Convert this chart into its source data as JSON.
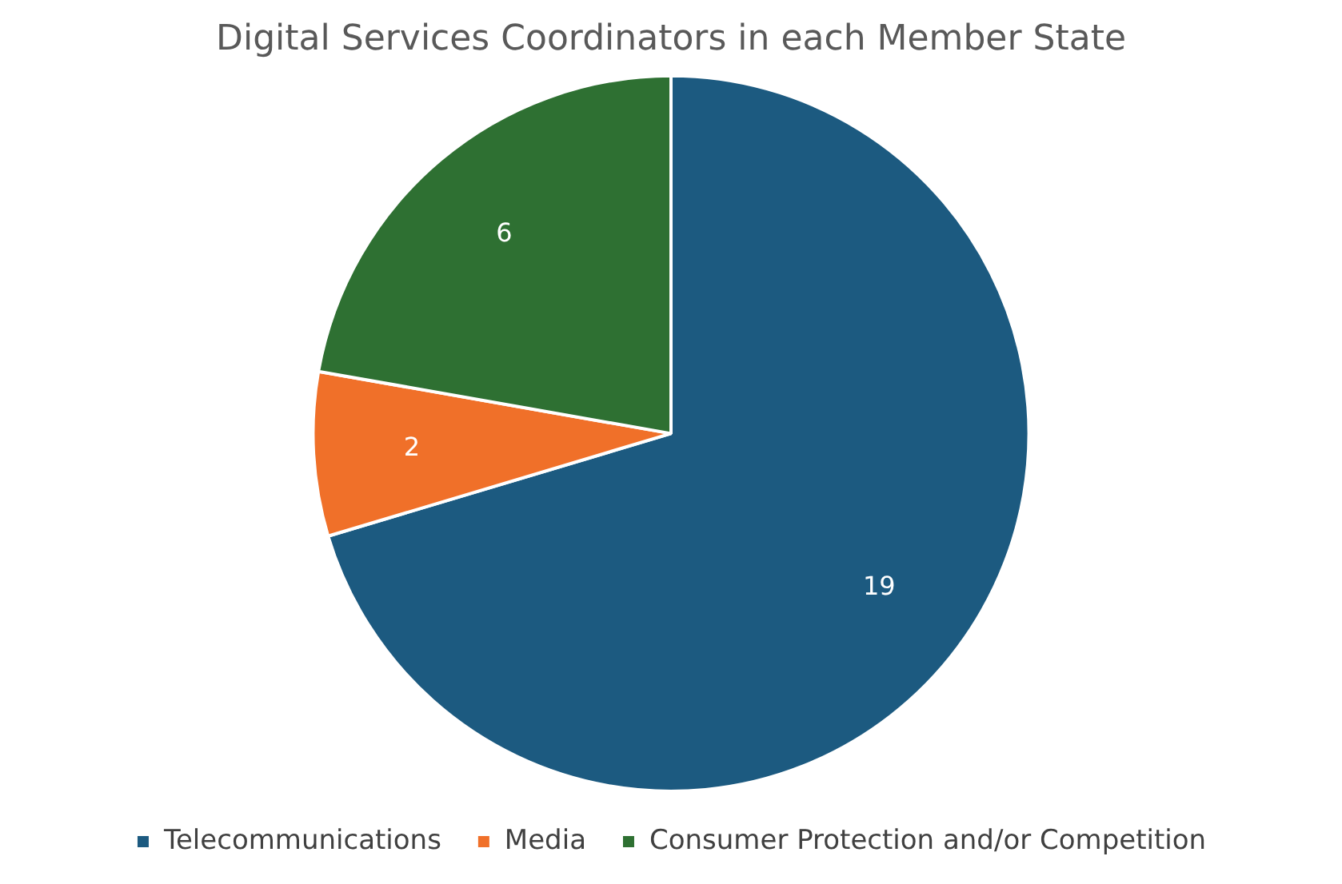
{
  "chart_data": {
    "type": "pie",
    "title": "Digital Services Coordinators in each Member State",
    "categories": [
      "Telecommunications",
      "Media",
      "Consumer Protection and/or Competition"
    ],
    "values": [
      19,
      2,
      6
    ],
    "colors": [
      "#1c5a80",
      "#f07029",
      "#2e7032"
    ],
    "data_labels": true,
    "legend": "bottom"
  }
}
